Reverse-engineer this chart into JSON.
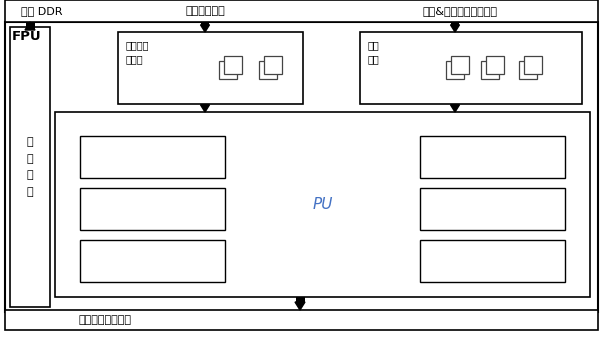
{
  "bg_color": "#ffffff",
  "border_color": "#000000",
  "text_color": "#000000",
  "top_bar_text": "外部 DDR",
  "top_label1": "特征映射数据",
  "top_label2": "权重&索引信息数据外部",
  "fpu_label": "FPU",
  "ctrl_label": "控\n制\n单\n元",
  "feature_buf_label": "特征矩阵\n图缓存",
  "weight_buf_label": "权重\n缓存",
  "pu_label": "PU",
  "output_label": "输出特征矩阵缓存"
}
